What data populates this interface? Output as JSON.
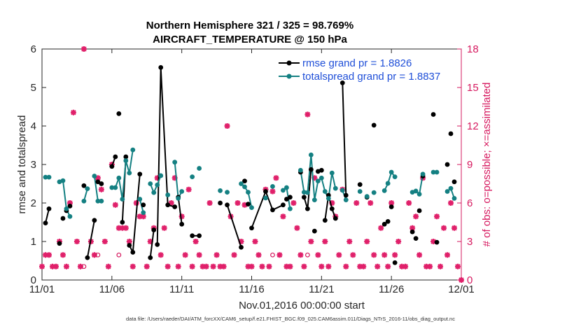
{
  "chart_data": {
    "type": "line",
    "title_line1": "Northern Hemisphere 321 / 325 = 98.769%",
    "title_line2": "AIRCRAFT_TEMPERATURE @ 150 hPa",
    "xlabel": "Nov.01,2016 00:00:00 start",
    "ylabel": "rmse and totalspread",
    "ylabel_right": "# of obs: o=possible; ×=assimilated",
    "xlim": [
      0,
      30
    ],
    "ylim": [
      0,
      6
    ],
    "ylim_right": [
      0,
      18
    ],
    "x_ticks": [
      0,
      5,
      10,
      15,
      20,
      25,
      30
    ],
    "x_tick_labels": [
      "11/01",
      "11/06",
      "11/11",
      "11/16",
      "11/21",
      "11/26",
      "12/01"
    ],
    "y_ticks": [
      0,
      1,
      2,
      3,
      4,
      5,
      6
    ],
    "y_tick_labels": [
      "0",
      "1",
      "2",
      "3",
      "4",
      "5",
      "6"
    ],
    "y_right_ticks": [
      0,
      3,
      6,
      9,
      12,
      15,
      18
    ],
    "y_right_tick_labels": [
      "0",
      "3",
      "6",
      "9",
      "12",
      "15",
      "18"
    ],
    "legend_location": "top-right",
    "footer": "data file: /Users/raeder/DAI/ATM_forcXX/CAM6_setup/f.e21.FHIST_BGC.f09_025.CAM6assim.011/Diags_NTrS_2016-11/obs_diag_output.nc",
    "series": [
      {
        "name": "rmse grand pr = 1.8826",
        "color": "#000000",
        "points": [
          [
            0.25,
            1.48
          ],
          [
            0.5,
            1.85
          ],
          [
            1.25,
            0.95
          ],
          [
            1.5,
            1.6
          ],
          [
            1.75,
            1.8
          ],
          [
            2.0,
            1.92
          ],
          [
            3.0,
            2.45
          ],
          [
            3.25,
            0.58
          ],
          [
            3.75,
            1.55
          ],
          [
            4.0,
            2.55
          ],
          [
            4.25,
            2.5
          ],
          [
            5.0,
            2.95
          ],
          [
            5.25,
            3.2
          ],
          [
            5.5,
            4.32
          ],
          [
            5.75,
            1.5
          ],
          [
            6.0,
            3.2
          ],
          [
            6.25,
            0.9
          ],
          [
            6.5,
            0.72
          ],
          [
            7.0,
            2.75
          ],
          [
            7.25,
            1.95
          ],
          [
            7.75,
            0.58
          ],
          [
            8.0,
            1.3
          ],
          [
            8.25,
            0.92
          ],
          [
            8.5,
            5.52
          ],
          [
            9.0,
            1.95
          ],
          [
            9.5,
            1.9
          ],
          [
            9.75,
            2.15
          ],
          [
            10.0,
            1.45
          ],
          [
            10.75,
            1.15
          ],
          [
            11.25,
            1.15
          ],
          [
            12.75,
            2.0
          ],
          [
            13.25,
            1.95
          ],
          [
            14.25,
            0.85
          ],
          [
            14.5,
            2.57
          ],
          [
            14.75,
            1.97
          ],
          [
            15.0,
            1.35
          ],
          [
            16.0,
            2.3
          ],
          [
            16.5,
            1.82
          ],
          [
            17.25,
            1.95
          ],
          [
            17.5,
            2.1
          ],
          [
            17.75,
            2.15
          ],
          [
            18.5,
            2.8
          ],
          [
            18.75,
            2.15
          ],
          [
            19.0,
            1.85
          ],
          [
            19.25,
            2.87
          ],
          [
            19.5,
            1.27
          ],
          [
            19.75,
            2.82
          ],
          [
            20.0,
            2.85
          ],
          [
            20.25,
            1.55
          ],
          [
            20.5,
            2.2
          ],
          [
            20.75,
            1.85
          ],
          [
            21.0,
            1.6
          ],
          [
            21.5,
            5.12
          ],
          [
            21.75,
            2.2
          ],
          [
            22.75,
            2.48
          ],
          [
            23.25,
            2.15
          ],
          [
            23.75,
            4.02
          ],
          [
            24.5,
            1.45
          ],
          [
            24.75,
            1.52
          ],
          [
            25.0,
            1.9
          ],
          [
            25.25,
            0.45
          ],
          [
            26.5,
            1.25
          ],
          [
            26.75,
            1.08
          ],
          [
            27.0,
            1.8
          ],
          [
            27.25,
            2.7
          ],
          [
            28.0,
            4.3
          ],
          [
            28.25,
            0.98
          ],
          [
            29.0,
            3.0
          ],
          [
            29.25,
            3.8
          ],
          [
            29.5,
            2.55
          ]
        ],
        "segments_break_after": [
          1,
          2,
          3,
          4,
          5,
          6,
          8,
          10,
          12,
          13,
          15,
          18,
          19,
          21,
          25,
          27,
          29,
          30,
          32,
          33,
          34,
          38,
          40,
          41,
          44,
          45,
          47,
          51,
          53,
          54,
          55,
          56,
          58,
          59,
          60,
          61,
          62,
          63,
          64,
          65,
          66,
          67,
          68
        ]
      },
      {
        "name": "totalspread grand pr = 1.8837",
        "color": "#148082",
        "points": [
          [
            0.25,
            2.67
          ],
          [
            0.5,
            2.67
          ],
          [
            1.25,
            2.55
          ],
          [
            1.5,
            2.58
          ],
          [
            1.75,
            1.85
          ],
          [
            2.0,
            1.65
          ],
          [
            3.0,
            2.05
          ],
          [
            3.25,
            2.37
          ],
          [
            3.75,
            2.7
          ],
          [
            4.0,
            2.05
          ],
          [
            4.25,
            2.05
          ],
          [
            5.0,
            2.4
          ],
          [
            5.25,
            2.4
          ],
          [
            5.5,
            2.65
          ],
          [
            5.75,
            2.1
          ],
          [
            6.0,
            3.1
          ],
          [
            6.25,
            2.78
          ],
          [
            6.5,
            3.38
          ],
          [
            7.0,
            2.1
          ],
          [
            7.25,
            1.75
          ],
          [
            7.75,
            2.5
          ],
          [
            8.0,
            2.27
          ],
          [
            8.25,
            2.47
          ],
          [
            8.5,
            2.71
          ],
          [
            9.0,
            2.21
          ],
          [
            9.5,
            3.06
          ],
          [
            9.75,
            2.12
          ],
          [
            10.0,
            2.3
          ],
          [
            10.75,
            2.68
          ],
          [
            11.25,
            2.9
          ],
          [
            12.75,
            2.32
          ],
          [
            13.25,
            2.28
          ],
          [
            14.25,
            2.5
          ],
          [
            14.5,
            2.42
          ],
          [
            14.75,
            2.28
          ],
          [
            15.0,
            1.88
          ],
          [
            16.0,
            2.13
          ],
          [
            16.5,
            2.43
          ],
          [
            17.25,
            2.33
          ],
          [
            17.5,
            2.4
          ],
          [
            17.75,
            1.85
          ],
          [
            18.5,
            2.85
          ],
          [
            18.75,
            2.28
          ],
          [
            19.0,
            2.27
          ],
          [
            19.25,
            3.25
          ],
          [
            19.5,
            2.08
          ],
          [
            19.75,
            2.57
          ],
          [
            20.0,
            2.65
          ],
          [
            20.25,
            2.3
          ],
          [
            20.5,
            2.12
          ],
          [
            20.75,
            2.78
          ],
          [
            21.0,
            2.38
          ],
          [
            21.5,
            2.33
          ],
          [
            21.75,
            2.08
          ],
          [
            22.75,
            2.3
          ],
          [
            23.25,
            2.17
          ],
          [
            23.75,
            2.27
          ],
          [
            24.5,
            2.32
          ],
          [
            24.75,
            2.51
          ],
          [
            25.0,
            2.8
          ],
          [
            25.25,
            2.68
          ],
          [
            26.5,
            2.28
          ],
          [
            26.75,
            2.31
          ],
          [
            27.0,
            2.23
          ],
          [
            27.25,
            2.75
          ],
          [
            28.0,
            2.8
          ],
          [
            28.25,
            2.8
          ],
          [
            29.0,
            2.3
          ],
          [
            29.25,
            2.38
          ],
          [
            29.5,
            2.12
          ]
        ]
      }
    ],
    "obs_possible": [
      [
        3.0,
        0.35
      ],
      [
        4.0,
        0.65
      ],
      [
        5.5,
        0.65
      ],
      [
        16.5,
        0.65
      ],
      [
        19.0,
        0.65
      ]
    ],
    "obs_assimilated": [
      [
        0.0,
        0.35
      ],
      [
        0.25,
        0.65
      ],
      [
        0.5,
        0.65
      ],
      [
        0.75,
        0.35
      ],
      [
        1.0,
        0.35
      ],
      [
        1.25,
        1.0
      ],
      [
        1.5,
        0.65
      ],
      [
        1.75,
        0.35
      ],
      [
        2.0,
        2.0
      ],
      [
        2.25,
        4.35
      ],
      [
        2.5,
        1.0
      ],
      [
        2.75,
        0.35
      ],
      [
        3.0,
        6.0
      ],
      [
        3.5,
        1.0
      ],
      [
        3.75,
        0.65
      ],
      [
        4.0,
        2.65
      ],
      [
        4.25,
        2.35
      ],
      [
        4.5,
        1.0
      ],
      [
        4.75,
        0.35
      ],
      [
        5.0,
        3.0
      ],
      [
        5.25,
        1.95
      ],
      [
        5.5,
        1.35
      ],
      [
        5.75,
        1.35
      ],
      [
        6.0,
        1.35
      ],
      [
        6.25,
        1.0
      ],
      [
        6.5,
        0.35
      ],
      [
        6.75,
        2.0
      ],
      [
        7.0,
        1.65
      ],
      [
        7.25,
        1.65
      ],
      [
        7.5,
        0.35
      ],
      [
        7.75,
        1.0
      ],
      [
        8.0,
        1.35
      ],
      [
        8.25,
        2.65
      ],
      [
        8.5,
        0.65
      ],
      [
        8.75,
        1.35
      ],
      [
        9.0,
        0.35
      ],
      [
        9.25,
        2.0
      ],
      [
        9.5,
        2.65
      ],
      [
        9.75,
        0.35
      ],
      [
        10.0,
        1.65
      ],
      [
        10.25,
        0.65
      ],
      [
        10.5,
        2.35
      ],
      [
        10.75,
        0.35
      ],
      [
        11.0,
        1.0
      ],
      [
        11.25,
        0.65
      ],
      [
        11.5,
        0.35
      ],
      [
        11.75,
        0.35
      ],
      [
        12.0,
        2.0
      ],
      [
        12.25,
        0.35
      ],
      [
        12.5,
        0.65
      ],
      [
        12.75,
        0.35
      ],
      [
        13.0,
        0.35
      ],
      [
        13.25,
        4.0
      ],
      [
        13.5,
        1.65
      ],
      [
        13.75,
        0.65
      ],
      [
        14.0,
        2.0
      ],
      [
        14.25,
        1.0
      ],
      [
        14.5,
        1.95
      ],
      [
        14.75,
        0.35
      ],
      [
        15.0,
        0.35
      ],
      [
        15.25,
        1.0
      ],
      [
        15.5,
        0.65
      ],
      [
        15.75,
        0.35
      ],
      [
        16.0,
        2.35
      ],
      [
        16.25,
        0.35
      ],
      [
        16.5,
        2.3
      ],
      [
        16.75,
        2.65
      ],
      [
        17.0,
        0.65
      ],
      [
        17.25,
        1.65
      ],
      [
        17.5,
        0.35
      ],
      [
        17.75,
        0.35
      ],
      [
        18.0,
        2.0
      ],
      [
        18.25,
        1.35
      ],
      [
        18.5,
        0.65
      ],
      [
        18.75,
        0.35
      ],
      [
        19.0,
        4.3
      ],
      [
        19.25,
        1.0
      ],
      [
        19.5,
        2.65
      ],
      [
        19.75,
        0.65
      ],
      [
        20.0,
        0.35
      ],
      [
        20.25,
        1.0
      ],
      [
        20.5,
        0.35
      ],
      [
        20.75,
        2.0
      ],
      [
        21.0,
        1.65
      ],
      [
        21.25,
        0.65
      ],
      [
        21.5,
        2.35
      ],
      [
        21.75,
        0.35
      ],
      [
        22.0,
        1.0
      ],
      [
        22.25,
        0.65
      ],
      [
        22.5,
        2.0
      ],
      [
        22.75,
        0.35
      ],
      [
        23.0,
        0.35
      ],
      [
        23.25,
        1.0
      ],
      [
        23.5,
        2.0
      ],
      [
        23.75,
        0.65
      ],
      [
        24.0,
        0.35
      ],
      [
        24.25,
        1.35
      ],
      [
        24.5,
        0.65
      ],
      [
        24.75,
        0.35
      ],
      [
        25.0,
        2.0
      ],
      [
        25.25,
        0.65
      ],
      [
        25.5,
        1.0
      ],
      [
        25.75,
        0.35
      ],
      [
        26.0,
        0.35
      ],
      [
        26.25,
        2.0
      ],
      [
        26.5,
        1.35
      ],
      [
        26.75,
        1.65
      ],
      [
        27.0,
        0.65
      ],
      [
        27.25,
        2.65
      ],
      [
        27.5,
        0.35
      ],
      [
        27.75,
        0.35
      ],
      [
        28.0,
        1.0
      ],
      [
        28.25,
        1.65
      ],
      [
        28.5,
        0.35
      ],
      [
        28.75,
        1.35
      ],
      [
        29.0,
        0.65
      ],
      [
        29.25,
        2.0
      ],
      [
        29.5,
        1.35
      ],
      [
        29.75,
        0.35
      ],
      [
        30.0,
        0.0
      ]
    ]
  }
}
